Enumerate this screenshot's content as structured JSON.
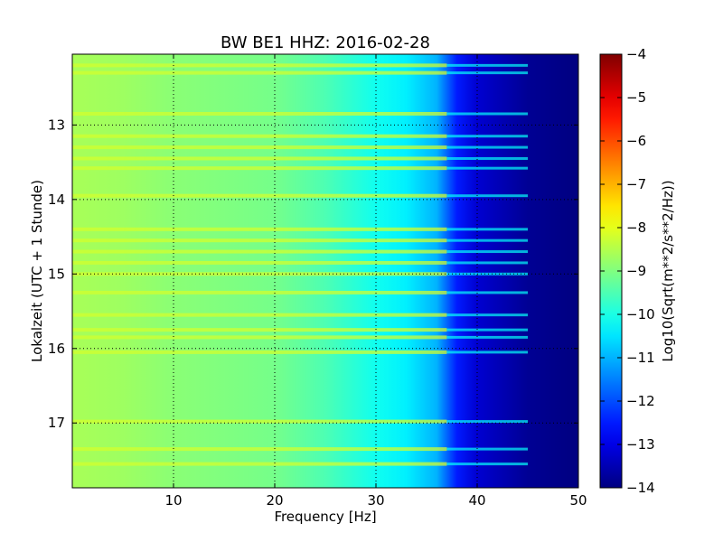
{
  "chart_data": {
    "type": "heatmap",
    "title": "BW BE1 HHZ: 2016-02-28",
    "xlabel": "Frequency [Hz]",
    "ylabel": "Lokalzeit (UTC + 1 Stunde)",
    "xlim": [
      0,
      50
    ],
    "ylim": [
      12.05,
      17.87
    ],
    "x_ticks": [
      10,
      20,
      30,
      40,
      50
    ],
    "y_ticks": [
      13,
      14,
      15,
      16,
      17
    ],
    "grid": true,
    "colorbar": {
      "label": "Log10(Sqrt(m**2/s**2/Hz))",
      "range": [
        -14,
        -4
      ],
      "ticks": [
        -4,
        -5,
        -6,
        -7,
        -8,
        -9,
        -10,
        -11,
        -12,
        -13,
        -14
      ],
      "colormap": "jet"
    },
    "profile": {
      "description": "typical level vs frequency",
      "freq_hz": [
        0,
        5,
        10,
        20,
        25,
        30,
        33,
        36,
        38,
        40,
        45,
        50
      ],
      "level": [
        -8.6,
        -8.7,
        -8.9,
        -9.1,
        -9.5,
        -10.1,
        -10.4,
        -11.0,
        -12.5,
        -13.2,
        -13.8,
        -14.0
      ]
    },
    "bright_bands_hours": [
      12.2,
      12.3,
      12.85,
      13.15,
      13.3,
      13.45,
      13.58,
      13.95,
      14.4,
      14.55,
      14.7,
      14.85,
      15.0,
      15.25,
      15.55,
      15.75,
      15.85,
      16.05,
      16.98,
      17.35,
      17.55
    ]
  }
}
